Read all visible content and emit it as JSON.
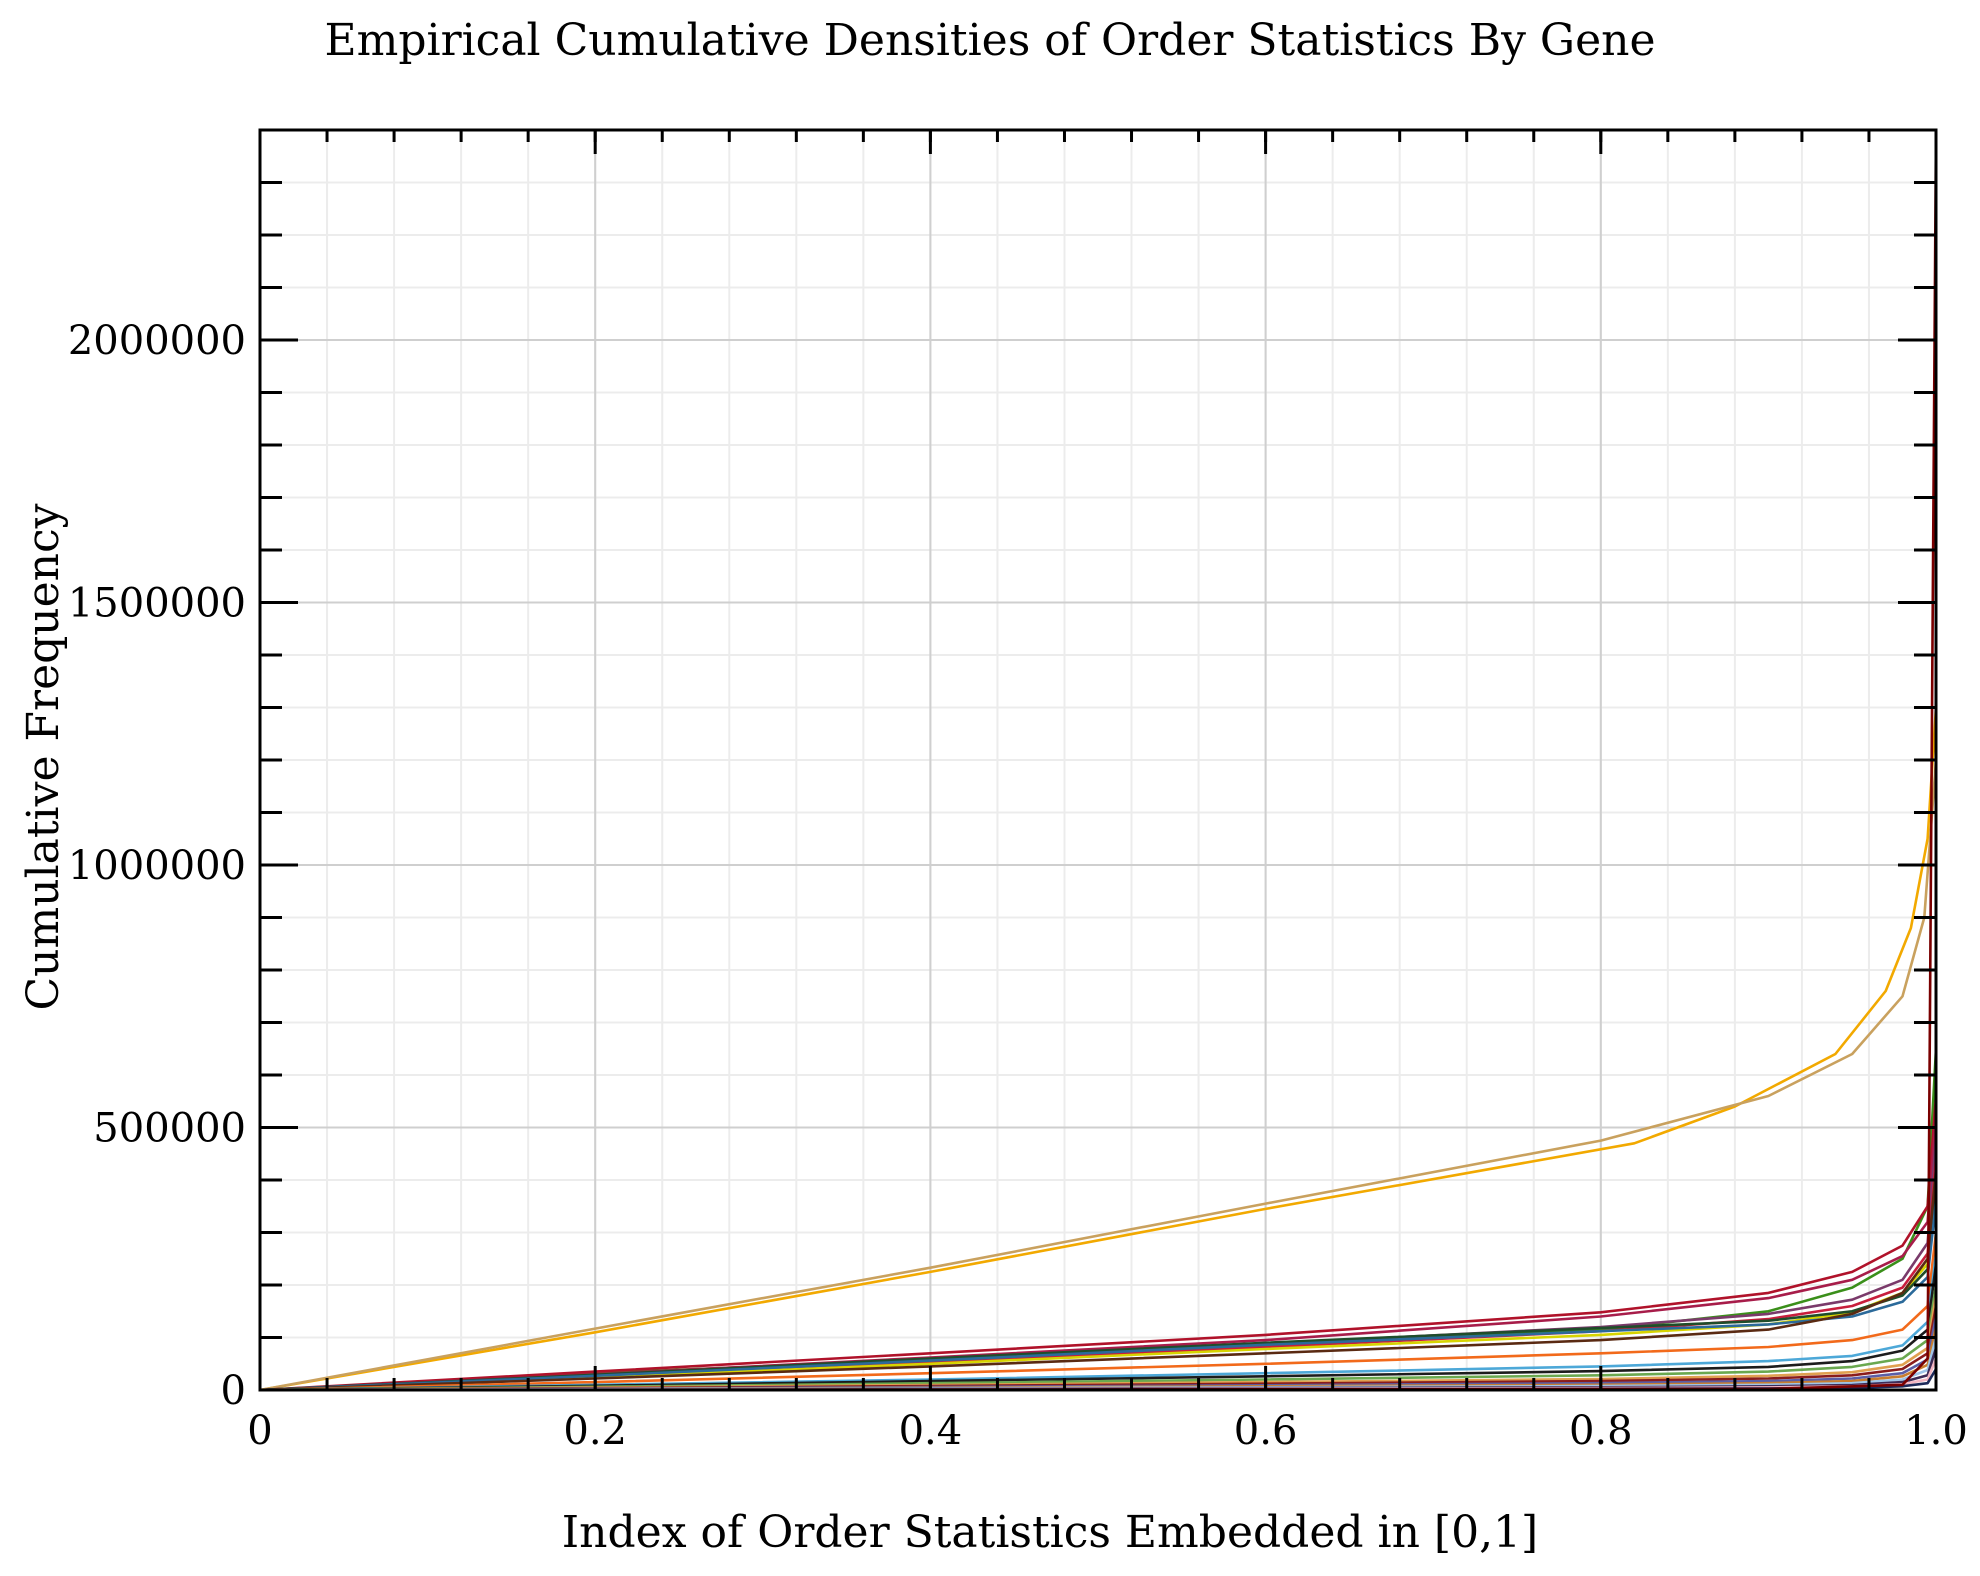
{
  "chart_data": {
    "type": "line",
    "title": "Empirical Cumulative Densities of Order Statistics By Gene",
    "xlabel": "Index of Order Statistics Embedded in [0,1]",
    "ylabel": "Cumulative Frequency",
    "xlim": [
      0,
      1
    ],
    "ylim": [
      0,
      2400000
    ],
    "xticks": [
      0,
      0.2,
      0.4,
      0.6,
      0.8,
      1.0
    ],
    "xtick_labels": [
      "0",
      "0.2",
      "0.4",
      "0.6",
      "0.8",
      "1.0"
    ],
    "yticks": [
      0,
      500000,
      1000000,
      1500000,
      2000000
    ],
    "ytick_labels": [
      "0",
      "500000",
      "1000000",
      "1500000",
      "2000000"
    ],
    "x_minor_step": 0.04,
    "y_minor_step": 100000,
    "grid": true,
    "legend": "none",
    "series": [
      {
        "color": "#f2a900",
        "points": [
          [
            0,
            0
          ],
          [
            0.2,
            110000
          ],
          [
            0.4,
            225000
          ],
          [
            0.6,
            345000
          ],
          [
            0.82,
            470000
          ],
          [
            0.88,
            540000
          ],
          [
            0.94,
            640000
          ],
          [
            0.97,
            760000
          ],
          [
            0.985,
            880000
          ],
          [
            0.995,
            1050000
          ],
          [
            1.0,
            1300000
          ]
        ]
      },
      {
        "color": "#c9a15e",
        "points": [
          [
            0,
            0
          ],
          [
            0.2,
            117000
          ],
          [
            0.4,
            233000
          ],
          [
            0.6,
            355000
          ],
          [
            0.8,
            475000
          ],
          [
            0.9,
            560000
          ],
          [
            0.95,
            640000
          ],
          [
            0.98,
            750000
          ],
          [
            0.993,
            900000
          ],
          [
            1.0,
            1200000
          ]
        ]
      },
      {
        "color": "#3a8f1a",
        "points": [
          [
            0,
            0
          ],
          [
            0.2,
            32000
          ],
          [
            0.4,
            58000
          ],
          [
            0.6,
            85000
          ],
          [
            0.8,
            115000
          ],
          [
            0.9,
            150000
          ],
          [
            0.95,
            195000
          ],
          [
            0.98,
            250000
          ],
          [
            0.995,
            350000
          ],
          [
            1.0,
            650000
          ]
        ]
      },
      {
        "color": "#b0122a",
        "points": [
          [
            0,
            0
          ],
          [
            0.2,
            35000
          ],
          [
            0.4,
            70000
          ],
          [
            0.6,
            105000
          ],
          [
            0.8,
            148000
          ],
          [
            0.9,
            185000
          ],
          [
            0.95,
            225000
          ],
          [
            0.98,
            275000
          ],
          [
            0.995,
            350000
          ],
          [
            1.0,
            560000
          ]
        ]
      },
      {
        "color": "#a71d4a",
        "points": [
          [
            0,
            0
          ],
          [
            0.2,
            30000
          ],
          [
            0.4,
            62000
          ],
          [
            0.6,
            95000
          ],
          [
            0.8,
            140000
          ],
          [
            0.9,
            175000
          ],
          [
            0.95,
            210000
          ],
          [
            0.98,
            255000
          ],
          [
            0.995,
            320000
          ],
          [
            1.0,
            520000
          ]
        ]
      },
      {
        "color": "#7a3a6a",
        "points": [
          [
            0,
            0
          ],
          [
            0.2,
            28000
          ],
          [
            0.4,
            58000
          ],
          [
            0.6,
            88000
          ],
          [
            0.8,
            120000
          ],
          [
            0.9,
            145000
          ],
          [
            0.95,
            172000
          ],
          [
            0.98,
            210000
          ],
          [
            0.995,
            280000
          ],
          [
            1.0,
            480000
          ]
        ]
      },
      {
        "color": "#c81e3c",
        "points": [
          [
            0,
            0
          ],
          [
            0.2,
            26000
          ],
          [
            0.4,
            53000
          ],
          [
            0.6,
            82000
          ],
          [
            0.8,
            112000
          ],
          [
            0.9,
            135000
          ],
          [
            0.95,
            160000
          ],
          [
            0.98,
            195000
          ],
          [
            0.995,
            260000
          ],
          [
            1.0,
            440000
          ]
        ]
      },
      {
        "color": "#d7d400",
        "points": [
          [
            0,
            0
          ],
          [
            0.2,
            24000
          ],
          [
            0.4,
            50000
          ],
          [
            0.6,
            78000
          ],
          [
            0.8,
            105000
          ],
          [
            0.9,
            125000
          ],
          [
            0.95,
            148000
          ],
          [
            0.98,
            185000
          ],
          [
            0.995,
            240000
          ],
          [
            1.0,
            400000
          ]
        ]
      },
      {
        "color": "#1f4d2b",
        "points": [
          [
            0,
            0
          ],
          [
            0.2,
            29000
          ],
          [
            0.4,
            60000
          ],
          [
            0.6,
            90000
          ],
          [
            0.8,
            118000
          ],
          [
            0.9,
            132000
          ],
          [
            0.95,
            150000
          ],
          [
            0.98,
            180000
          ],
          [
            0.995,
            230000
          ],
          [
            1.0,
            380000
          ]
        ]
      },
      {
        "color": "#2b6a9a",
        "points": [
          [
            0,
            0
          ],
          [
            0.2,
            27000
          ],
          [
            0.4,
            56000
          ],
          [
            0.6,
            86000
          ],
          [
            0.8,
            112000
          ],
          [
            0.9,
            125000
          ],
          [
            0.95,
            140000
          ],
          [
            0.98,
            168000
          ],
          [
            0.995,
            215000
          ],
          [
            1.0,
            360000
          ]
        ]
      },
      {
        "color": "#5a2a12",
        "points": [
          [
            0,
            0
          ],
          [
            0.2,
            22000
          ],
          [
            0.4,
            45000
          ],
          [
            0.6,
            70000
          ],
          [
            0.8,
            95000
          ],
          [
            0.9,
            115000
          ],
          [
            0.95,
            145000
          ],
          [
            0.98,
            185000
          ],
          [
            0.995,
            250000
          ],
          [
            1.0,
            420000
          ]
        ]
      },
      {
        "color": "#f26a1b",
        "points": [
          [
            0,
            0
          ],
          [
            0.2,
            15000
          ],
          [
            0.4,
            32000
          ],
          [
            0.6,
            50000
          ],
          [
            0.8,
            70000
          ],
          [
            0.9,
            82000
          ],
          [
            0.95,
            95000
          ],
          [
            0.98,
            115000
          ],
          [
            0.995,
            160000
          ],
          [
            1.0,
            300000
          ]
        ]
      },
      {
        "color": "#4da8d8",
        "points": [
          [
            0,
            0
          ],
          [
            0.2,
            10000
          ],
          [
            0.4,
            20000
          ],
          [
            0.6,
            32000
          ],
          [
            0.8,
            45000
          ],
          [
            0.9,
            55000
          ],
          [
            0.95,
            65000
          ],
          [
            0.98,
            85000
          ],
          [
            0.995,
            130000
          ],
          [
            1.0,
            260000
          ]
        ]
      },
      {
        "color": "#1c1c1c",
        "points": [
          [
            0,
            0
          ],
          [
            0.2,
            8000
          ],
          [
            0.4,
            17000
          ],
          [
            0.6,
            26000
          ],
          [
            0.8,
            36000
          ],
          [
            0.9,
            44000
          ],
          [
            0.95,
            55000
          ],
          [
            0.98,
            75000
          ],
          [
            0.995,
            115000
          ],
          [
            1.0,
            240000
          ]
        ]
      },
      {
        "color": "#6aa84f",
        "points": [
          [
            0,
            0
          ],
          [
            0.2,
            6000
          ],
          [
            0.4,
            13000
          ],
          [
            0.6,
            20000
          ],
          [
            0.8,
            28000
          ],
          [
            0.9,
            35000
          ],
          [
            0.95,
            44000
          ],
          [
            0.98,
            60000
          ],
          [
            0.995,
            95000
          ],
          [
            1.0,
            200000
          ]
        ]
      },
      {
        "color": "#e0a050",
        "points": [
          [
            0,
            0
          ],
          [
            0.2,
            4500
          ],
          [
            0.4,
            9500
          ],
          [
            0.6,
            15000
          ],
          [
            0.8,
            21000
          ],
          [
            0.9,
            27000
          ],
          [
            0.95,
            34000
          ],
          [
            0.98,
            48000
          ],
          [
            0.995,
            80000
          ],
          [
            1.0,
            180000
          ]
        ]
      },
      {
        "color": "#8a1c1c",
        "points": [
          [
            0,
            0
          ],
          [
            0.2,
            3500
          ],
          [
            0.4,
            7500
          ],
          [
            0.6,
            12000
          ],
          [
            0.8,
            17000
          ],
          [
            0.9,
            22000
          ],
          [
            0.95,
            28000
          ],
          [
            0.98,
            40000
          ],
          [
            0.995,
            70000
          ],
          [
            1.0,
            160000
          ]
        ]
      },
      {
        "color": "#5b5ea6",
        "points": [
          [
            0,
            0
          ],
          [
            0.2,
            2500
          ],
          [
            0.4,
            5500
          ],
          [
            0.6,
            9000
          ],
          [
            0.8,
            13000
          ],
          [
            0.9,
            17000
          ],
          [
            0.95,
            22000
          ],
          [
            0.98,
            32000
          ],
          [
            0.995,
            58000
          ],
          [
            1.0,
            140000
          ]
        ]
      },
      {
        "color": "#c77d30",
        "points": [
          [
            0,
            0
          ],
          [
            0.2,
            2000
          ],
          [
            0.4,
            4200
          ],
          [
            0.6,
            7000
          ],
          [
            0.8,
            10000
          ],
          [
            0.9,
            13000
          ],
          [
            0.95,
            17000
          ],
          [
            0.98,
            26000
          ],
          [
            0.995,
            48000
          ],
          [
            1.0,
            120000
          ]
        ]
      },
      {
        "color": "#9fc5e8",
        "points": [
          [
            0,
            0
          ],
          [
            0.2,
            1500
          ],
          [
            0.4,
            3200
          ],
          [
            0.6,
            5200
          ],
          [
            0.8,
            7500
          ],
          [
            0.9,
            10000
          ],
          [
            0.95,
            13000
          ],
          [
            0.98,
            20000
          ],
          [
            0.995,
            38000
          ],
          [
            1.0,
            100000
          ]
        ]
      },
      {
        "color": "#3d2b56",
        "points": [
          [
            0,
            0
          ],
          [
            0.2,
            1000
          ],
          [
            0.4,
            2200
          ],
          [
            0.6,
            3600
          ],
          [
            0.8,
            5200
          ],
          [
            0.9,
            7000
          ],
          [
            0.95,
            9500
          ],
          [
            0.98,
            15000
          ],
          [
            0.995,
            28000
          ],
          [
            1.0,
            80000
          ]
        ]
      },
      {
        "color": "#f4b6c2",
        "points": [
          [
            0,
            0
          ],
          [
            0.2,
            700
          ],
          [
            0.4,
            1500
          ],
          [
            0.6,
            2500
          ],
          [
            0.8,
            3600
          ],
          [
            0.9,
            5000
          ],
          [
            0.95,
            7000
          ],
          [
            0.98,
            11000
          ],
          [
            0.995,
            20000
          ],
          [
            1.0,
            60000
          ]
        ]
      },
      {
        "color": "#1e2a5a",
        "points": [
          [
            0,
            0
          ],
          [
            0.2,
            400
          ],
          [
            0.4,
            900
          ],
          [
            0.6,
            1500
          ],
          [
            0.8,
            2200
          ],
          [
            0.9,
            3000
          ],
          [
            0.95,
            4200
          ],
          [
            0.98,
            7000
          ],
          [
            0.995,
            13000
          ],
          [
            1.0,
            40000
          ]
        ]
      },
      {
        "color": "#7a0000",
        "points": [
          [
            0,
            0
          ],
          [
            0.9,
            2000
          ],
          [
            0.98,
            10000
          ],
          [
            0.995,
            60000
          ],
          [
            1.0,
            2400000
          ]
        ]
      }
    ]
  }
}
